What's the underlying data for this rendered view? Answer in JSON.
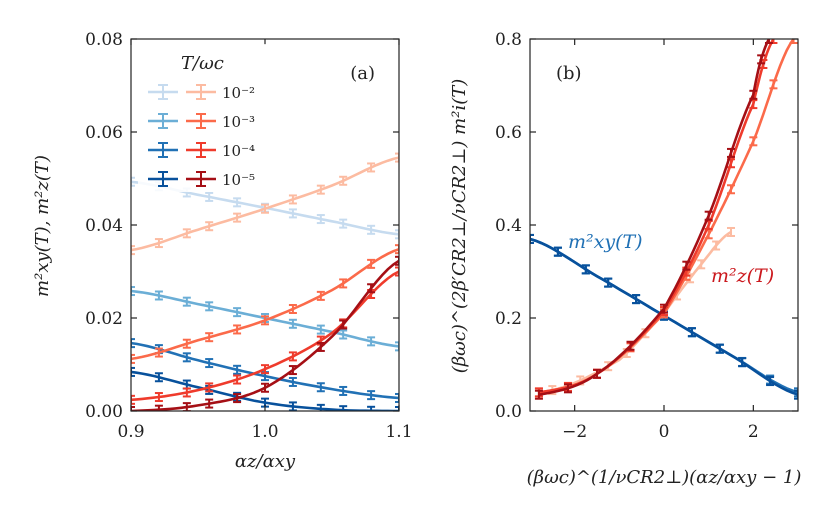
{
  "chart_data": [
    {
      "panel": "(a)",
      "type": "line",
      "xlabel": "αz/αxy",
      "ylabel": "m²xy(T), m²z(T)",
      "xlim": [
        0.9,
        1.1
      ],
      "ylim": [
        0.0,
        0.08
      ],
      "xticks": [
        "0.9",
        "1.0",
        "1.1"
      ],
      "yticks": [
        "0.00",
        "0.02",
        "0.04",
        "0.06",
        "0.08"
      ],
      "legend": {
        "title": "T/ωc",
        "entries": [
          "10⁻²",
          "10⁻³",
          "10⁻⁴",
          "10⁻⁵"
        ],
        "placement": "top-left"
      },
      "series": [
        {
          "name": "m2xy T=1e-2",
          "color": "#c6dbef",
          "x": [
            0.9,
            0.95,
            1.0,
            1.05,
            1.1
          ],
          "y": [
            0.0493,
            0.0465,
            0.0437,
            0.0408,
            0.038
          ]
        },
        {
          "name": "m2xy T=1e-3",
          "color": "#6baed6",
          "x": [
            0.9,
            0.95,
            1.0,
            1.05,
            1.1
          ],
          "y": [
            0.0258,
            0.023,
            0.02,
            0.017,
            0.0139
          ]
        },
        {
          "name": "m2xy T=1e-4",
          "color": "#2171b5",
          "x": [
            0.9,
            0.95,
            1.0,
            1.05,
            1.1
          ],
          "y": [
            0.0146,
            0.0109,
            0.0075,
            0.0047,
            0.0028
          ]
        },
        {
          "name": "m2xy T=1e-5",
          "color": "#08519c",
          "x": [
            0.9,
            0.95,
            1.0,
            1.05,
            1.1
          ],
          "y": [
            0.0084,
            0.0051,
            0.0018,
            0.0003,
            0.0
          ]
        },
        {
          "name": "m2z T=1e-2",
          "color": "#fcbba1",
          "x": [
            0.9,
            0.95,
            1.0,
            1.05,
            1.1
          ],
          "y": [
            0.0346,
            0.039,
            0.0435,
            0.0485,
            0.0545
          ]
        },
        {
          "name": "m2z T=1e-3",
          "color": "#fb6a4a",
          "x": [
            0.9,
            0.95,
            1.0,
            1.05,
            1.1
          ],
          "y": [
            0.0112,
            0.0152,
            0.0195,
            0.026,
            0.0348
          ]
        },
        {
          "name": "m2z T=1e-4",
          "color": "#ef3b2c",
          "x": [
            0.9,
            0.95,
            1.0,
            1.05,
            1.1
          ],
          "y": [
            0.0024,
            0.0045,
            0.009,
            0.0168,
            0.03
          ]
        },
        {
          "name": "m2z T=1e-5",
          "color": "#a50f15",
          "x": [
            0.9,
            0.95,
            1.0,
            1.05,
            1.1
          ],
          "y": [
            0.0,
            0.0012,
            0.005,
            0.016,
            0.0323
          ]
        }
      ]
    },
    {
      "panel": "(b)",
      "type": "line",
      "xlabel": "(βωc)^(1/νCR2⊥)(αz/αxy − 1)",
      "ylabel": "(βωc)^(2β′CR2⊥/νCR2⊥) m²i(T)",
      "xlim": [
        -3.0,
        3.0
      ],
      "ylim": [
        0.0,
        0.8
      ],
      "xticks": [
        "−2",
        "0",
        "2"
      ],
      "yticks": [
        "0.0",
        "0.2",
        "0.4",
        "0.6",
        "0.8"
      ],
      "annotations": [
        "m²xy(T)",
        "m²z(T)"
      ],
      "series": [
        {
          "name": "m2xy T=1e-2",
          "color": "#c6dbef",
          "x": [
            -3.0,
            -1.5,
            0.0,
            1.5,
            3.0
          ],
          "y": [
            0.37,
            0.29,
            0.205,
            0.12,
            0.04
          ]
        },
        {
          "name": "m2xy T=1e-3",
          "color": "#6baed6",
          "x": [
            -3.0,
            -1.5,
            0.0,
            1.5,
            3.0
          ],
          "y": [
            0.37,
            0.29,
            0.205,
            0.12,
            0.04
          ]
        },
        {
          "name": "m2xy T=1e-4",
          "color": "#2171b5",
          "x": [
            -3.0,
            -1.5,
            0.0,
            1.5,
            3.0
          ],
          "y": [
            0.37,
            0.29,
            0.205,
            0.12,
            0.04
          ]
        },
        {
          "name": "m2xy T=1e-5",
          "color": "#08519c",
          "x": [
            -3.0,
            -1.5,
            0.0,
            1.5,
            3.0
          ],
          "y": [
            0.37,
            0.29,
            0.205,
            0.12,
            0.035
          ]
        },
        {
          "name": "m2z T=1e-2",
          "color": "#fcbba1",
          "x": [
            -2.5,
            -1.0,
            0.0,
            0.7,
            1.5
          ],
          "y": [
            0.045,
            0.11,
            0.21,
            0.3,
            0.385
          ]
        },
        {
          "name": "m2z T=1e-3",
          "color": "#fb6a4a",
          "x": [
            -2.8,
            -1.5,
            0.0,
            1.0,
            2.0,
            2.9
          ],
          "y": [
            0.04,
            0.08,
            0.21,
            0.38,
            0.58,
            0.8
          ]
        },
        {
          "name": "m2z T=1e-4",
          "color": "#ef3b2c",
          "x": [
            -2.8,
            -1.5,
            0.0,
            1.0,
            2.0,
            2.45
          ],
          "y": [
            0.04,
            0.08,
            0.215,
            0.4,
            0.66,
            0.8
          ]
        },
        {
          "name": "m2z T=1e-5",
          "color": "#a50f15",
          "x": [
            -2.8,
            -1.5,
            0.0,
            1.0,
            2.0,
            2.35
          ],
          "y": [
            0.035,
            0.08,
            0.22,
            0.42,
            0.68,
            0.8
          ]
        }
      ]
    }
  ]
}
